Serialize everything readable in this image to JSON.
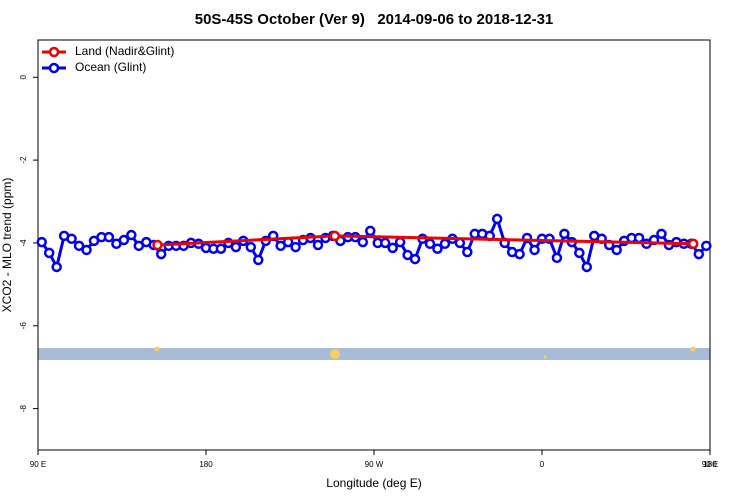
{
  "chart_data": {
    "type": "line",
    "title": "50S-45S October (Ver 9)   2014-09-06 to 2018-12-31",
    "x_label": "Longitude (deg E)",
    "y_label": "XCO2 - MLO trend (ppm)",
    "xlim": [
      90,
      450
    ],
    "ylim": [
      -9,
      0.9
    ],
    "xticks": [
      {
        "value": 90,
        "label": "90 E"
      },
      180,
      {
        "value": 270,
        "label": "90 W"
      },
      {
        "value": 360,
        "label": "0"
      },
      {
        "value": 450,
        "label": "90 E"
      },
      {
        "value": 540,
        "label": "180"
      }
    ],
    "yticks": [
      -8,
      -6,
      -4,
      -2,
      0
    ],
    "legend": "top-left",
    "series": [
      {
        "name": "Land (Nadir&Glint)",
        "color": "#ee0000",
        "x": [
          154,
          249,
          441
        ],
        "values": [
          -4.05,
          -3.83,
          -4.02
        ]
      },
      {
        "name": "Ocean (Glint)",
        "color": "#0000ee",
        "x": [
          92,
          96,
          100,
          104,
          108,
          112,
          116,
          120,
          124,
          128,
          132,
          136,
          140,
          144,
          148,
          152,
          156,
          160,
          164,
          168,
          172,
          176,
          180,
          184,
          188,
          192,
          196,
          200,
          204,
          208,
          212,
          216,
          220,
          224,
          228,
          232,
          236,
          240,
          244,
          248,
          252,
          256,
          260,
          264,
          268,
          272,
          276,
          280,
          284,
          288,
          292,
          296,
          300,
          304,
          308,
          312,
          316,
          320,
          324,
          328,
          332,
          336,
          340,
          344,
          348,
          352,
          356,
          360,
          364,
          368,
          372,
          376,
          380,
          384,
          388,
          392,
          396,
          400,
          404,
          408,
          412,
          416,
          420,
          424,
          428,
          432,
          436,
          440,
          444,
          448
        ],
        "values": [
          -3.98,
          -4.24,
          -4.58,
          -3.83,
          -3.9,
          -4.07,
          -4.17,
          -3.95,
          -3.86,
          -3.86,
          -4.02,
          -3.93,
          -3.81,
          -4.07,
          -3.98,
          -4.05,
          -4.27,
          -4.07,
          -4.07,
          -4.07,
          -4.0,
          -4.02,
          -4.12,
          -4.14,
          -4.14,
          -4.0,
          -4.1,
          -3.95,
          -4.1,
          -4.41,
          -3.95,
          -3.83,
          -4.07,
          -3.98,
          -4.1,
          -3.93,
          -3.88,
          -4.05,
          -3.88,
          -3.83,
          -3.95,
          -3.86,
          -3.86,
          -3.98,
          -3.71,
          -4.0,
          -4.0,
          -4.12,
          -3.98,
          -4.29,
          -4.39,
          -3.9,
          -4.02,
          -4.14,
          -4.02,
          -3.9,
          -4.0,
          -4.22,
          -3.78,
          -3.78,
          -3.83,
          -3.42,
          -4.0,
          -4.22,
          -4.27,
          -3.88,
          -4.17,
          -3.9,
          -3.9,
          -4.36,
          -3.78,
          -3.98,
          -4.24,
          -4.58,
          -3.83,
          -3.9,
          -4.05,
          -4.17,
          -3.95,
          -3.88,
          -3.88,
          -4.02,
          -3.93,
          -3.78,
          -4.05,
          -3.98,
          -4.02,
          -4.02,
          -4.27,
          -4.07
        ]
      }
    ]
  }
}
